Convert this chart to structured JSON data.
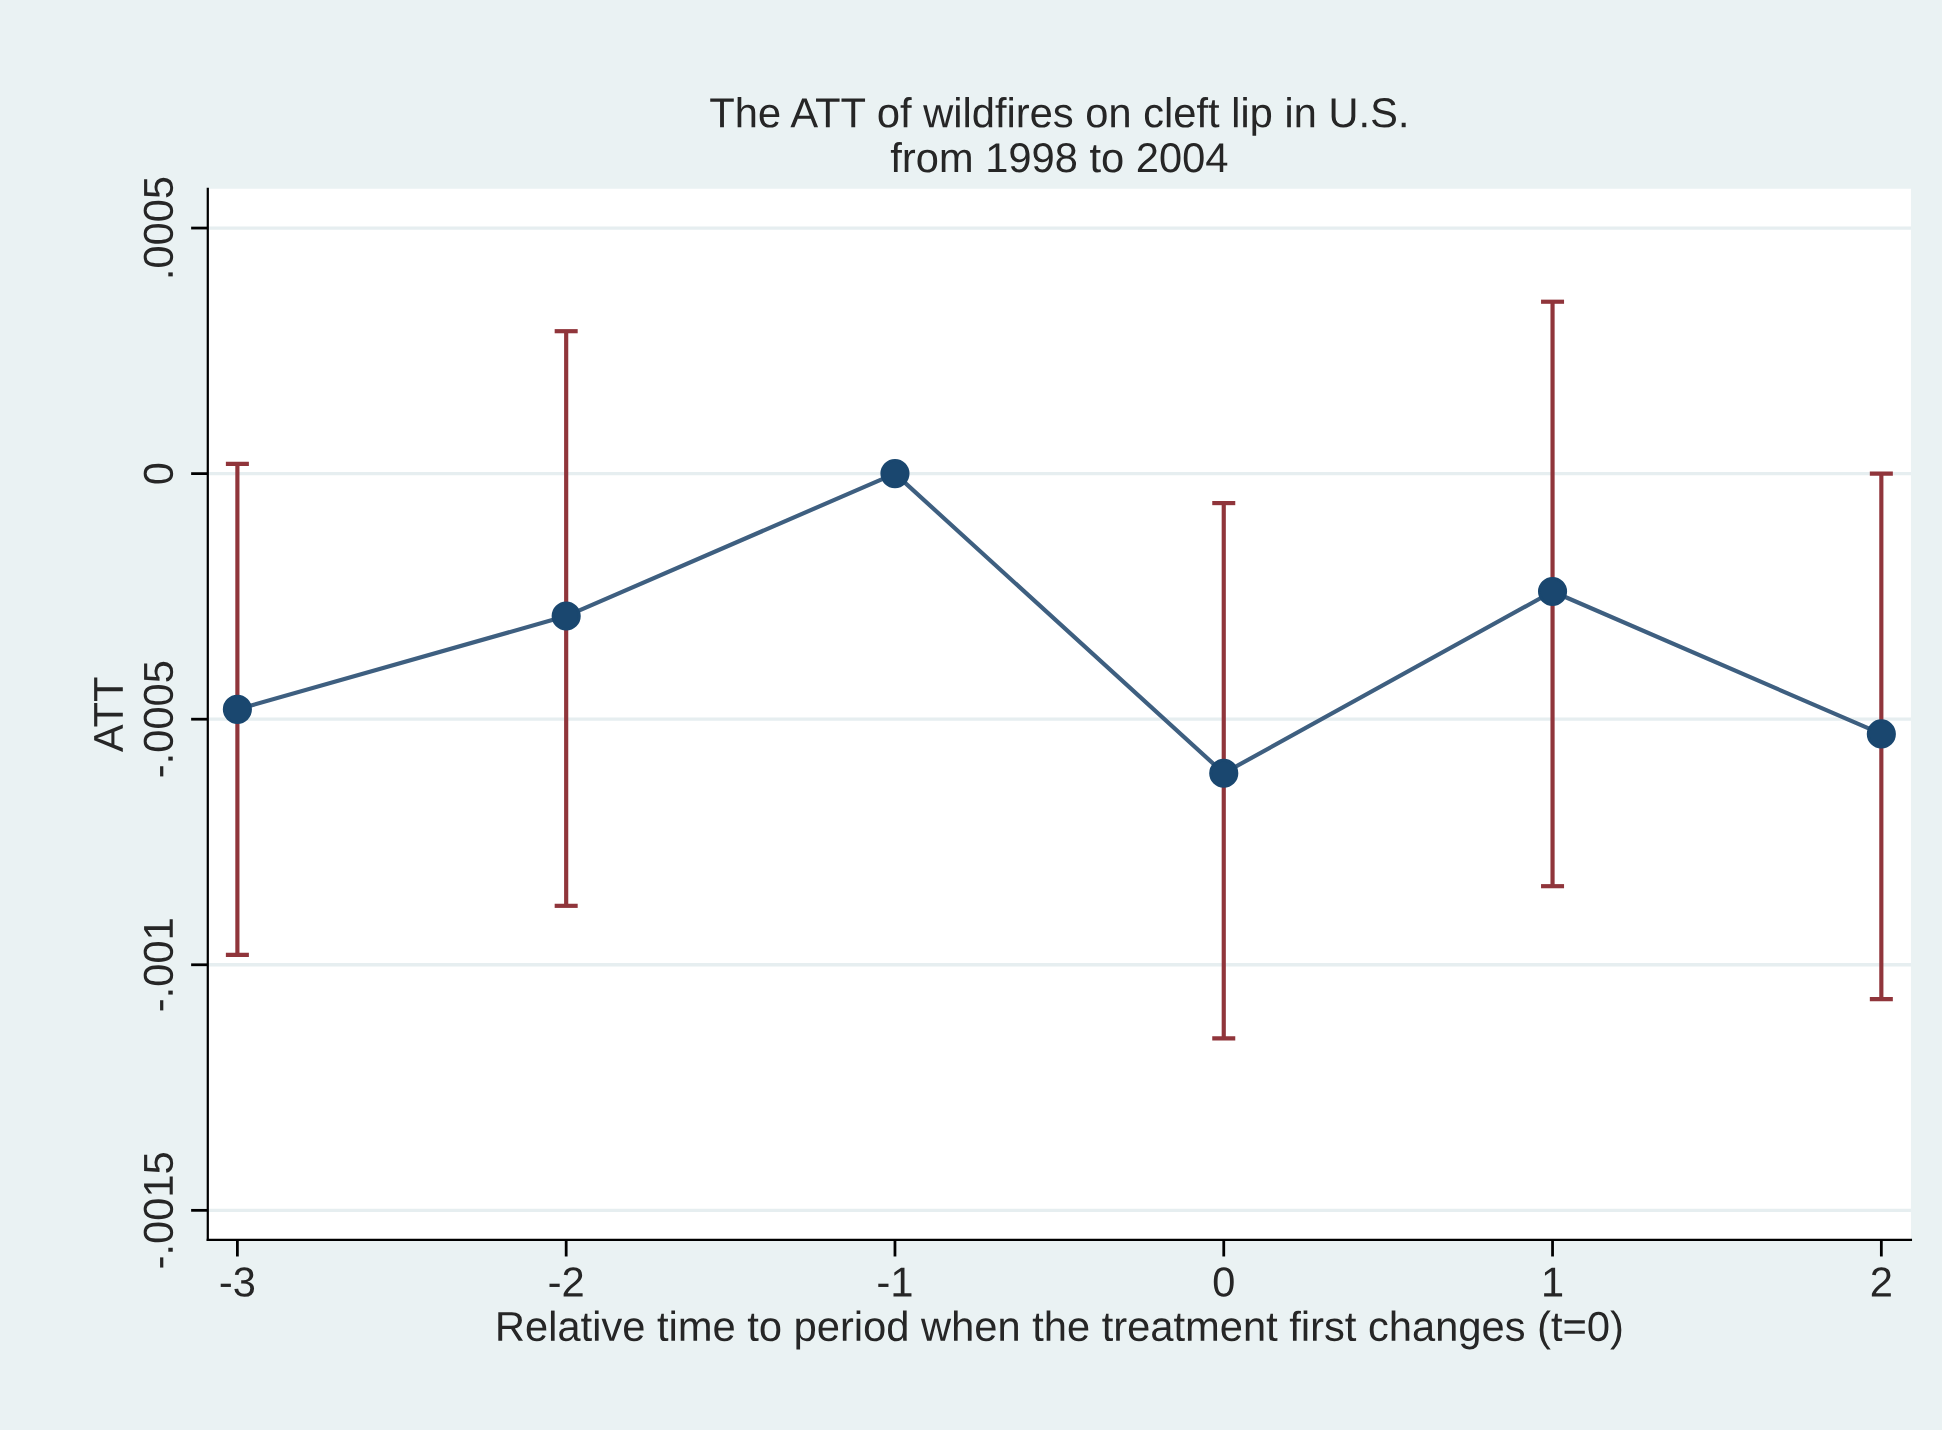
{
  "chart_data": {
    "type": "line",
    "title": "The ATT of wildfires on cleft lip in U.S.\nfrom 1998 to 2004",
    "xlabel": "Relative time to period when the treatment first changes (t=0)",
    "ylabel": "ATT",
    "x": [
      -3,
      -2,
      -1,
      0,
      1,
      2
    ],
    "series": [
      {
        "color": "#1a476f",
        "values": [
          -0.00048,
          -0.00029,
          0,
          -0.00061,
          -0.00024,
          -0.00053
        ],
        "errors": [
          [
            -0.00098,
            2e-05
          ],
          [
            -0.00088,
            0.00029
          ],
          null,
          [
            -0.00115,
            -6e-05
          ],
          [
            -0.00084,
            0.00035
          ],
          [
            -0.00107,
            0.0
          ]
        ]
      }
    ],
    "xlim": [
      -3.09,
      2.09
    ],
    "xticks": [
      -3,
      -2,
      -1,
      0,
      1,
      2
    ],
    "ylim": [
      -0.00156,
      0.00058
    ],
    "yticks": [
      {
        "value": 0.0005,
        "label": ".0005"
      },
      0,
      {
        "value": -0.0005,
        "label": "-.0005"
      },
      {
        "value": -0.001,
        "label": "-.001"
      },
      {
        "value": -0.0015,
        "label": "-.0015"
      }
    ],
    "grid": "y",
    "marker": "circle",
    "line_style": "solid",
    "legend": false
  }
}
